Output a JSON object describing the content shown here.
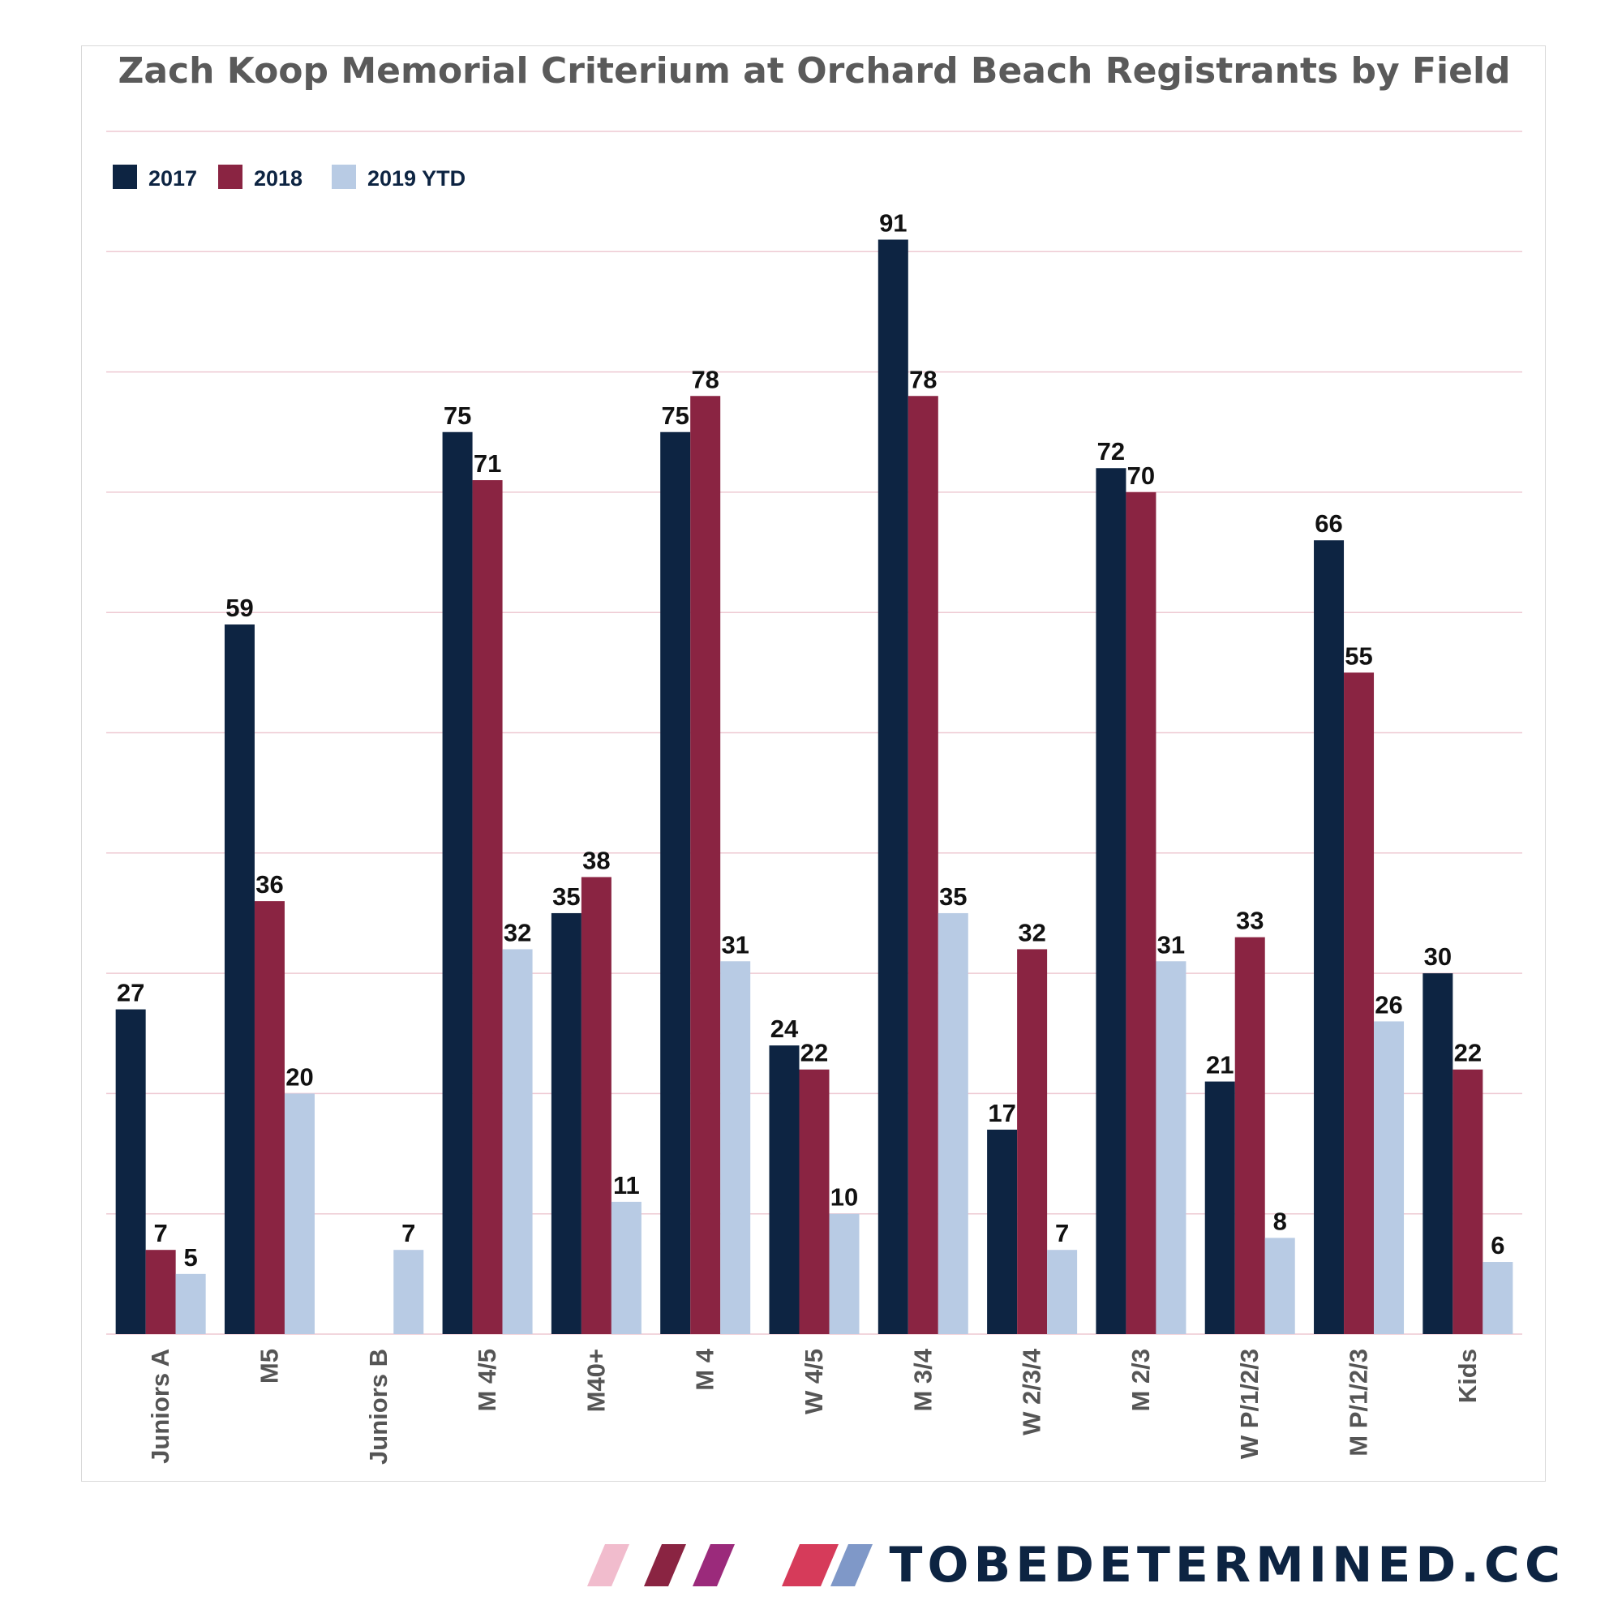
{
  "chart_data": {
    "type": "bar",
    "title": "Zach Koop Memorial Criterium at Orchard Beach Registrants by Field",
    "xlabel": "",
    "ylabel": "",
    "ylim": [
      0,
      100
    ],
    "grid": true,
    "legend_position": "top-left",
    "categories": [
      "Juniors A",
      "M5",
      "Juniors B",
      "M 4/5",
      "M40+",
      "M 4",
      "W 4/5",
      "M 3/4",
      "W 2/3/4",
      "M 2/3",
      "W P/1/2/3",
      "M P/1/2/3",
      "Kids"
    ],
    "series": [
      {
        "name": "2017",
        "color": "#0d2442",
        "values": [
          27,
          59,
          null,
          75,
          35,
          75,
          24,
          91,
          17,
          72,
          21,
          66,
          30
        ]
      },
      {
        "name": "2018",
        "color": "#8a2442",
        "values": [
          7,
          36,
          null,
          71,
          38,
          78,
          22,
          78,
          32,
          70,
          33,
          55,
          22
        ]
      },
      {
        "name": "2019 YTD",
        "color": "#b8cbe4",
        "values": [
          5,
          20,
          7,
          32,
          11,
          31,
          10,
          35,
          7,
          31,
          8,
          26,
          6
        ]
      }
    ]
  },
  "brand": {
    "text": "TOBEDETERMINED.CC",
    "stripe_colors": [
      "#f1bccd",
      "#8a2442",
      "#9b2a7b",
      "#d63b5a",
      "#7f98c8"
    ]
  }
}
